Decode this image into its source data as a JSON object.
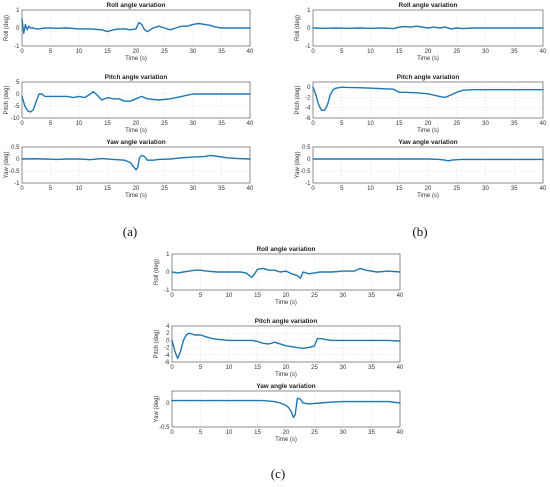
{
  "figure_labels": [
    "(a)",
    "(b)",
    "(c)"
  ],
  "chart_data": [
    {
      "panel": "(a)",
      "type": "line",
      "title": "Roll angle variation",
      "xlabel": "Time (s)",
      "ylabel": "Roll (deg)",
      "xlim": [
        0,
        40
      ],
      "ylim": [
        -1,
        1
      ],
      "xticks": [
        0,
        5,
        10,
        15,
        20,
        25,
        30,
        35,
        40
      ],
      "yticks": [
        -1,
        0,
        1
      ],
      "grid": true,
      "series": [
        {
          "x": [
            0,
            0.3,
            0.6,
            0.9,
            1.2,
            1.5,
            2,
            2.5,
            3,
            4,
            5,
            6,
            8,
            10,
            12,
            14,
            15,
            16,
            17,
            18,
            19,
            20,
            20.5,
            21,
            21.5,
            22,
            22.5,
            23,
            24,
            25,
            26,
            27,
            28,
            29,
            30,
            31,
            32,
            33,
            34,
            35,
            36,
            38,
            40
          ],
          "y": [
            0.5,
            -0.3,
            0.2,
            -0.1,
            0.1,
            0,
            0,
            -0.05,
            -0.05,
            0,
            0,
            -0.02,
            0,
            -0.05,
            -0.05,
            -0.1,
            -0.2,
            -0.1,
            -0.05,
            -0.05,
            -0.1,
            -0.05,
            0.3,
            0.2,
            -0.1,
            -0.2,
            -0.1,
            0,
            0.1,
            0,
            -0.1,
            0,
            0.1,
            0.1,
            0.2,
            0.25,
            0.2,
            0.15,
            0.05,
            0,
            0,
            0,
            0
          ]
        }
      ]
    },
    {
      "panel": "(a)",
      "type": "line",
      "title": "Pitch angle variation",
      "xlabel": "Time (s)",
      "ylabel": "Pitch (deg)",
      "xlim": [
        0,
        40
      ],
      "ylim": [
        -10,
        5
      ],
      "xticks": [
        0,
        5,
        10,
        15,
        20,
        25,
        30,
        35,
        40
      ],
      "yticks": [
        -10,
        -5,
        0,
        5
      ],
      "grid": true,
      "series": [
        {
          "x": [
            0,
            0.5,
            1,
            1.5,
            2,
            2.5,
            3,
            3.5,
            4,
            5,
            6,
            8,
            9,
            10,
            11,
            12,
            12.5,
            13,
            14,
            15,
            16,
            17,
            18,
            19,
            20,
            21,
            22,
            24,
            26,
            28,
            30,
            32,
            35,
            38,
            40
          ],
          "y": [
            -1,
            -5,
            -7,
            -7.5,
            -6.5,
            -3,
            0,
            0,
            -1,
            -1,
            -1,
            -1,
            -1.5,
            -1,
            -1.5,
            0,
            1,
            0,
            -2.5,
            -1.5,
            -2,
            -2,
            -3,
            -3,
            -2,
            -1,
            -2,
            -2.5,
            -2,
            -1,
            0,
            0,
            0,
            0,
            0
          ]
        }
      ]
    },
    {
      "panel": "(a)",
      "type": "line",
      "title": "Yaw angle variation",
      "xlabel": "Time (s)",
      "ylabel": "Yaw (deg)",
      "xlim": [
        0,
        40
      ],
      "ylim": [
        -1,
        0.5
      ],
      "xticks": [
        0,
        5,
        10,
        15,
        20,
        25,
        30,
        35,
        40
      ],
      "yticks": [
        -1,
        -0.5,
        0,
        0.5
      ],
      "grid": true,
      "series": [
        {
          "x": [
            0,
            2,
            4,
            6,
            8,
            10,
            12,
            14,
            16,
            18,
            19,
            19.5,
            20,
            20.3,
            20.6,
            21,
            21.5,
            22,
            23,
            24,
            26,
            28,
            30,
            32,
            33,
            34,
            36,
            38,
            40
          ],
          "y": [
            0,
            0.01,
            0,
            -0.02,
            0,
            0,
            -0.03,
            0.02,
            -0.02,
            -0.05,
            -0.15,
            -0.3,
            -0.45,
            -0.35,
            0.05,
            0.15,
            0.1,
            -0.05,
            -0.05,
            -0.02,
            0,
            0.05,
            0.08,
            0.1,
            0.15,
            0.12,
            0.05,
            0.02,
            0
          ]
        }
      ]
    },
    {
      "panel": "(b)",
      "type": "line",
      "title": "Roll angle variation",
      "xlabel": "Time (s)",
      "ylabel": "Roll (deg)",
      "xlim": [
        0,
        40
      ],
      "ylim": [
        -1,
        1
      ],
      "xticks": [
        0,
        5,
        10,
        15,
        20,
        25,
        30,
        35,
        40
      ],
      "yticks": [
        -1,
        0,
        1
      ],
      "grid": true,
      "series": [
        {
          "x": [
            0,
            2,
            4,
            6,
            8,
            10,
            12,
            14,
            15,
            16,
            17,
            18,
            19,
            20,
            21,
            22,
            23,
            24,
            25,
            26,
            28,
            30,
            32,
            34,
            36,
            38,
            40
          ],
          "y": [
            0,
            -0.02,
            0,
            -0.02,
            0,
            -0.02,
            0,
            -0.03,
            0.05,
            0.08,
            0.05,
            0.1,
            0.05,
            0,
            0.05,
            0,
            0.05,
            -0.05,
            0,
            -0.03,
            0,
            0,
            0,
            0,
            0,
            0,
            0
          ]
        }
      ]
    },
    {
      "panel": "(b)",
      "type": "line",
      "title": "Pitch angle variation",
      "xlabel": "Time (s)",
      "ylabel": "Pitch (deg)",
      "xlim": [
        0,
        40
      ],
      "ylim": [
        -6,
        1
      ],
      "xticks": [
        0,
        5,
        10,
        15,
        20,
        25,
        30,
        35,
        40
      ],
      "yticks": [
        -6,
        -4,
        -2,
        0
      ],
      "grid": true,
      "series": [
        {
          "x": [
            0,
            0.5,
            1,
            1.5,
            2,
            2.5,
            3,
            3.5,
            4,
            5,
            6,
            8,
            10,
            12,
            14,
            15,
            16,
            18,
            20,
            22,
            23,
            24,
            25,
            26,
            28,
            30,
            32,
            35,
            38,
            40
          ],
          "y": [
            0,
            -1.5,
            -3.5,
            -4.5,
            -4.5,
            -3.5,
            -1.5,
            -0.5,
            -0.2,
            0,
            -0.05,
            -0.1,
            -0.2,
            -0.3,
            -0.4,
            -1,
            -1,
            -1.1,
            -1.3,
            -1.8,
            -2,
            -1.5,
            -1,
            -0.6,
            -0.5,
            -0.5,
            -0.5,
            -0.5,
            -0.5,
            -0.5
          ]
        }
      ]
    },
    {
      "panel": "(b)",
      "type": "line",
      "title": "Yaw angle variation",
      "xlabel": "Time (s)",
      "ylabel": "Yaw (deg)",
      "xlim": [
        0,
        40
      ],
      "ylim": [
        -1,
        0.5
      ],
      "xticks": [
        0,
        5,
        10,
        15,
        20,
        25,
        30,
        35,
        40
      ],
      "yticks": [
        -1,
        -0.5,
        0,
        0.5
      ],
      "grid": true,
      "series": [
        {
          "x": [
            0,
            5,
            10,
            15,
            20,
            22,
            23,
            23.5,
            24,
            25,
            26,
            30,
            35,
            40
          ],
          "y": [
            0,
            0,
            0,
            0,
            0,
            -0.02,
            -0.05,
            -0.08,
            -0.05,
            -0.03,
            -0.02,
            -0.02,
            -0.02,
            -0.02
          ]
        }
      ]
    },
    {
      "panel": "(c)",
      "type": "line",
      "title": "Roll angle variation",
      "xlabel": "Time (s)",
      "ylabel": "Roll (deg)",
      "xlim": [
        0,
        40
      ],
      "ylim": [
        -1,
        1
      ],
      "xticks": [
        0,
        5,
        10,
        15,
        20,
        25,
        30,
        35,
        40
      ],
      "yticks": [
        -1,
        0,
        1
      ],
      "grid": true,
      "series": [
        {
          "x": [
            0,
            1,
            2,
            3,
            4,
            5,
            6,
            8,
            10,
            12,
            13,
            14,
            14.5,
            15,
            16,
            17,
            18,
            19,
            20,
            21,
            22,
            22.5,
            23,
            24,
            25,
            26,
            28,
            30,
            32,
            33,
            34,
            36,
            38,
            40
          ],
          "y": [
            0,
            -0.05,
            0,
            0.05,
            0.1,
            0.1,
            0.05,
            0,
            0,
            0,
            -0.05,
            -0.3,
            -0.1,
            0.15,
            0.2,
            0.1,
            0.1,
            0,
            0.05,
            -0.1,
            -0.2,
            -0.35,
            0,
            -0.1,
            -0.05,
            0,
            0,
            0.05,
            0.05,
            0.2,
            0.1,
            0,
            0.05,
            0
          ]
        }
      ]
    },
    {
      "panel": "(c)",
      "type": "line",
      "title": "Pitch angle variation",
      "xlabel": "Time (s)",
      "ylabel": "Pitch (deg)",
      "xlim": [
        0,
        40
      ],
      "ylim": [
        -6,
        4
      ],
      "xticks": [
        0,
        5,
        10,
        15,
        20,
        25,
        30,
        35,
        40
      ],
      "yticks": [
        -6,
        -4,
        -2,
        0,
        2,
        4
      ],
      "grid": true,
      "series": [
        {
          "x": [
            0,
            0.5,
            1,
            1.5,
            2,
            2.5,
            3,
            4,
            5,
            6,
            7,
            8,
            10,
            12,
            14,
            15,
            16,
            17,
            18,
            20,
            22,
            23,
            24,
            25,
            25.5,
            26,
            28,
            30,
            32,
            35,
            38,
            40
          ],
          "y": [
            0,
            -3,
            -5,
            -3,
            0,
            1.5,
            2,
            1.5,
            1.5,
            1,
            0.5,
            0.3,
            0,
            0,
            0,
            -0.3,
            -0.8,
            -1,
            -0.5,
            -1.5,
            -2,
            -2.2,
            -2,
            -1.5,
            0.5,
            0.5,
            0,
            0,
            0,
            0,
            0,
            -0.2
          ]
        }
      ]
    },
    {
      "panel": "(c)",
      "type": "line",
      "title": "Yaw angle variation",
      "xlabel": "Time (s)",
      "ylabel": "Yaw (deg)",
      "xlim": [
        0,
        40
      ],
      "ylim": [
        -0.5,
        0.25
      ],
      "xticks": [
        0,
        5,
        10,
        15,
        20,
        25,
        30,
        35,
        40
      ],
      "yticks": [
        -0.5,
        0
      ],
      "grid": true,
      "series": [
        {
          "x": [
            0,
            2,
            4,
            6,
            8,
            10,
            12,
            14,
            16,
            18,
            19,
            20,
            20.5,
            21,
            21.3,
            21.6,
            22,
            22.5,
            23,
            24,
            26,
            28,
            30,
            35,
            38,
            40
          ],
          "y": [
            0.05,
            0.05,
            0.05,
            0.05,
            0.05,
            0.05,
            0.05,
            0.05,
            0.05,
            0.03,
            0,
            -0.05,
            -0.1,
            -0.2,
            -0.3,
            -0.25,
            0.1,
            0.08,
            0,
            -0.02,
            0,
            0.02,
            0.03,
            0.03,
            0.03,
            0
          ]
        }
      ]
    }
  ]
}
